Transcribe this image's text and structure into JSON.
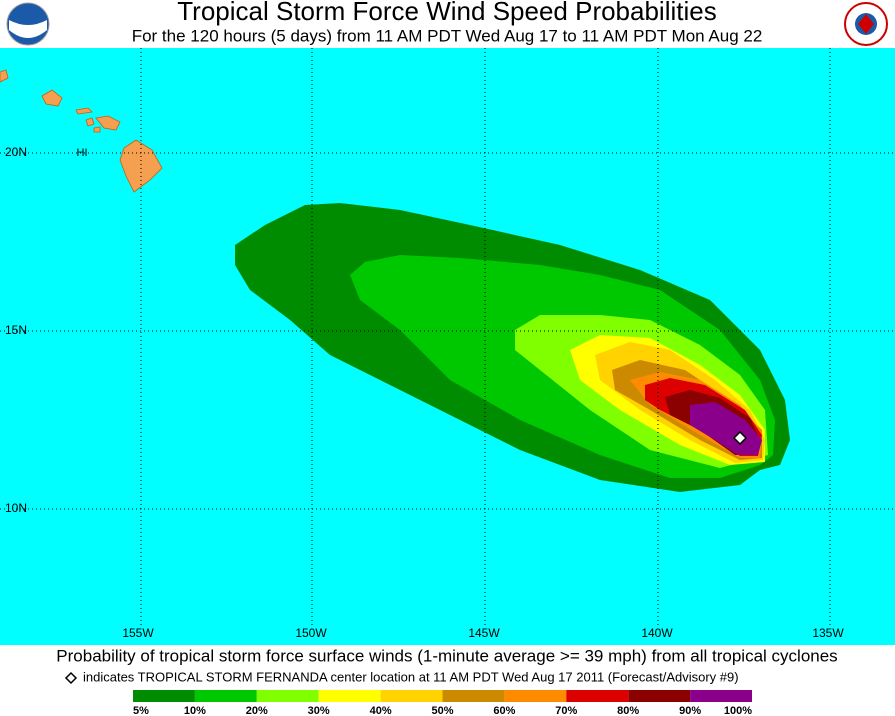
{
  "header": {
    "title": "Tropical Storm Force Wind Speed Probabilities",
    "subtitle": "For the 120 hours (5 days) from 11 AM PDT Wed Aug 17 to 11 AM PDT Mon Aug 22"
  },
  "map": {
    "latitude_labels": [
      "20N",
      "15N",
      "10N"
    ],
    "longitude_labels": [
      "155W",
      "150W",
      "145W",
      "140W",
      "135W"
    ],
    "region_labels": [
      "HI"
    ]
  },
  "footer": {
    "caption": "Probability of tropical storm force surface winds (1-minute average >= 39 mph) from all tropical cyclones",
    "marker_note": "indicates TROPICAL STORM FERNANDA center location at 11 AM PDT Wed Aug 17 2011 (Forecast/Advisory #9)"
  },
  "legend": {
    "colors": [
      "#008c00",
      "#00c800",
      "#80ff00",
      "#ffff00",
      "#ffd200",
      "#cc8a00",
      "#ff8c00",
      "#dd0000",
      "#8b0000",
      "#8b008b"
    ],
    "labels": [
      "5%",
      "10%",
      "20%",
      "30%",
      "40%",
      "50%",
      "60%",
      "70%",
      "80%",
      "90%",
      "100%"
    ]
  }
}
